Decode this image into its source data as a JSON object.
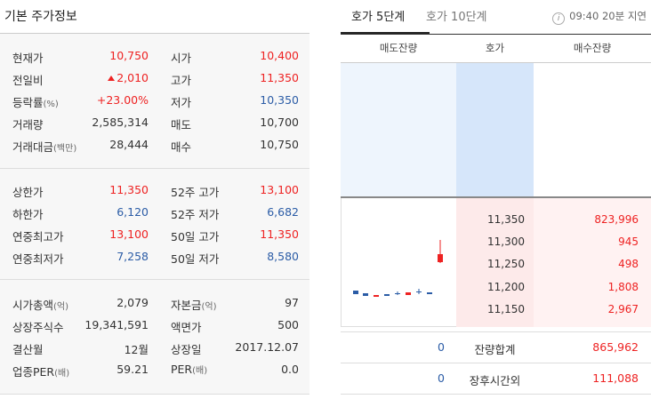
{
  "left": {
    "title": "기본 주가정보",
    "unit_pct": "(%)",
    "unit_million": "(백만)",
    "unit_eok": "(억)",
    "unit_bae": "(배)",
    "rows_a": [
      {
        "l1": "현재가",
        "v1": "10,750",
        "l2": "시가",
        "v2": "10,400"
      },
      {
        "l1": "전일비",
        "v1": "2,010",
        "l2": "고가",
        "v2": "11,350"
      },
      {
        "l1": "등락률",
        "v1": "+23.00%",
        "l2": "저가",
        "v2": "10,350"
      },
      {
        "l1": "거래량",
        "v1": "2,585,314",
        "l2": "매도",
        "v2": "10,700"
      },
      {
        "l1": "거래대금",
        "v1": "28,444",
        "l2": "매수",
        "v2": "10,750"
      }
    ],
    "rows_b": [
      {
        "l1": "상한가",
        "v1": "11,350",
        "l2": "52주 고가",
        "v2": "13,100"
      },
      {
        "l1": "하한가",
        "v1": "6,120",
        "l2": "52주 저가",
        "v2": "6,682"
      },
      {
        "l1": "연중최고가",
        "v1": "13,100",
        "l2": "50일 고가",
        "v2": "11,350"
      },
      {
        "l1": "연중최저가",
        "v1": "7,258",
        "l2": "50일 저가",
        "v2": "8,580"
      }
    ],
    "rows_c": [
      {
        "l1": "시가총액",
        "v1": "2,079",
        "l2": "자본금",
        "v2": "97"
      },
      {
        "l1": "상장주식수",
        "v1": "19,341,591",
        "l2": "액면가",
        "v2": "500"
      },
      {
        "l1": "결산월",
        "v1": "12월",
        "l2": "상장일",
        "v2": "2017.12.07"
      },
      {
        "l1": "업종PER",
        "v1": "59.21",
        "l2": "PER",
        "v2": "0.0"
      }
    ]
  },
  "right": {
    "tab_active": "호가 5단계",
    "tab_inactive": "호가 10단계",
    "info_icon_glyph": "i",
    "delay_text": "09:40 20분 지연",
    "headers": {
      "sell": "매도잔량",
      "price": "호가",
      "buy": "매수잔량"
    },
    "bids": [
      {
        "price": "11,350",
        "vol": "823,996"
      },
      {
        "price": "11,300",
        "vol": "945"
      },
      {
        "price": "11,250",
        "vol": "498"
      },
      {
        "price": "11,200",
        "vol": "1,808"
      },
      {
        "price": "11,150",
        "vol": "2,967"
      }
    ],
    "total": {
      "sell": "0",
      "label": "잔량합계",
      "buy": "865,962"
    },
    "after_hours": {
      "sell": "0",
      "label": "장후시간외",
      "buy": "111,088"
    }
  },
  "colors": {
    "up": "#e22222",
    "down": "#2b5ca6",
    "ask_bg": "#d6e6fa",
    "bid_bg": "#fdeaea"
  }
}
